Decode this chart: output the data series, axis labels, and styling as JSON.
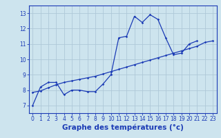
{
  "xlabel": "Graphe des températures (°c)",
  "background_color": "#cde4ee",
  "grid_color": "#aec8d8",
  "line_color": "#1a3ab5",
  "x_values": [
    0,
    1,
    2,
    3,
    4,
    5,
    6,
    7,
    8,
    9,
    10,
    11,
    12,
    13,
    14,
    15,
    16,
    17,
    18,
    19,
    20,
    21,
    22,
    23
  ],
  "y_curve": [
    7.0,
    8.2,
    8.5,
    8.5,
    7.7,
    8.0,
    8.0,
    7.9,
    7.9,
    8.4,
    9.0,
    11.4,
    11.5,
    12.8,
    12.4,
    12.9,
    12.6,
    11.4,
    10.3,
    10.4,
    11.0,
    11.2,
    null,
    null
  ],
  "y_line": [
    7.85,
    7.95,
    8.15,
    8.35,
    8.5,
    8.6,
    8.7,
    8.8,
    8.9,
    9.05,
    9.2,
    9.35,
    9.5,
    9.65,
    9.8,
    9.95,
    10.1,
    10.25,
    10.4,
    10.55,
    10.7,
    10.85,
    11.1,
    11.2
  ],
  "ylim": [
    6.5,
    13.5
  ],
  "xlim": [
    -0.5,
    23.5
  ],
  "yticks": [
    7,
    8,
    9,
    10,
    11,
    12,
    13
  ],
  "xticks": [
    0,
    1,
    2,
    3,
    4,
    5,
    6,
    7,
    8,
    9,
    10,
    11,
    12,
    13,
    14,
    15,
    16,
    17,
    18,
    19,
    20,
    21,
    22,
    23
  ],
  "tick_fontsize": 5.5,
  "xlabel_fontsize": 7.5,
  "marker": "D",
  "markersize": 1.8,
  "linewidth": 0.9
}
